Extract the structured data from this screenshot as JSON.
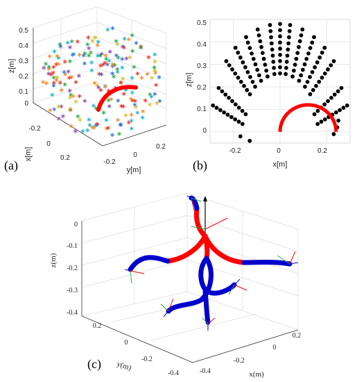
{
  "chart_data": [
    {
      "panel_label": "(a)",
      "type": "scatter",
      "subtype": "3d-scatter-with-arc",
      "zlabel": "z[m]",
      "xlabel": "x[m]",
      "ylabel": "y[m]",
      "z_ticks": [
        "0.5",
        "0.4",
        "0.3",
        "0.2",
        "0.1",
        "0"
      ],
      "x_ticks": [
        "-0.2",
        "0",
        "0.2"
      ],
      "y_ticks": [
        "-0.2",
        "0",
        "0.2"
      ],
      "marker": "asterisk",
      "marker_colors": [
        "#e6332a",
        "#2f6fd6",
        "#2aa84a",
        "#f08a24",
        "#8e44ad",
        "#1ab0c9",
        "#d4c22a"
      ],
      "arc_color": "#ff0000",
      "grid": true
    },
    {
      "panel_label": "(b)",
      "type": "scatter",
      "xlabel": "x[m]",
      "ylabel": "z[m]",
      "x_ticks": [
        "-0.2",
        "0",
        "0.2"
      ],
      "y_ticks": [
        "0.5",
        "0.4",
        "0.3",
        "0.2",
        "0.1",
        "0"
      ],
      "xlim": [
        -0.3,
        0.3
      ],
      "ylim": [
        -0.05,
        0.5
      ],
      "point_color": "#000000",
      "arc_color": "#ff0000",
      "arc": {
        "center_x": 0.12,
        "center_z": 0.0,
        "radius": 0.12
      },
      "grid": true
    },
    {
      "panel_label": "(c)",
      "type": "line",
      "subtype": "3d-curves",
      "zlabel": "z(m)",
      "xlabel": "x(m)",
      "ylabel": "y(m)",
      "z_ticks": [
        "0",
        "-0.1",
        "-0.2",
        "-0.3",
        "-0.4"
      ],
      "x_ticks": [
        "0.2",
        "0",
        "-0.2",
        "-0.4"
      ],
      "y_ticks": [
        "0.2",
        "0",
        "-0.2",
        "-0.4"
      ],
      "series_colors": {
        "base": "#ff0000",
        "tip": "#0000cc"
      },
      "frame_colors": [
        "#ff0000",
        "#2aa84a",
        "#0000cc",
        "#000000"
      ],
      "grid": true
    }
  ]
}
